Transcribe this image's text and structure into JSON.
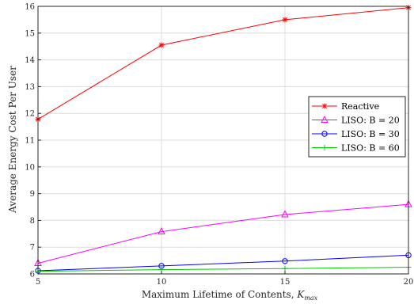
{
  "chart_data": {
    "type": "line",
    "x": [
      5,
      10,
      15,
      20
    ],
    "xlabel": "Maximum Lifetime of Contents, ",
    "xlabel_sym": "K",
    "xlabel_sub": "max",
    "ylabel": "Average Energy Cost Per User",
    "xlim": [
      5,
      20
    ],
    "ylim": [
      6,
      16
    ],
    "xticks": [
      5,
      10,
      15,
      20
    ],
    "yticks": [
      6,
      7,
      8,
      9,
      10,
      11,
      12,
      13,
      14,
      15,
      16
    ],
    "grid": true,
    "legend_position": "right",
    "series": [
      {
        "name": "Reactive",
        "values": [
          11.78,
          14.55,
          15.5,
          15.95
        ],
        "color": "#ff0000",
        "marker": "asterisk"
      },
      {
        "name": "LISO: B = 20",
        "values": [
          6.4,
          7.58,
          8.22,
          8.6
        ],
        "color": "#ff00ff",
        "marker": "triangle"
      },
      {
        "name": "LISO: B = 30",
        "values": [
          6.12,
          6.3,
          6.48,
          6.7
        ],
        "color": "#0000ff",
        "marker": "circle"
      },
      {
        "name": "LISO: B = 60",
        "values": [
          6.1,
          6.16,
          6.2,
          6.25
        ],
        "color": "#00cc00",
        "marker": "plus"
      }
    ]
  }
}
